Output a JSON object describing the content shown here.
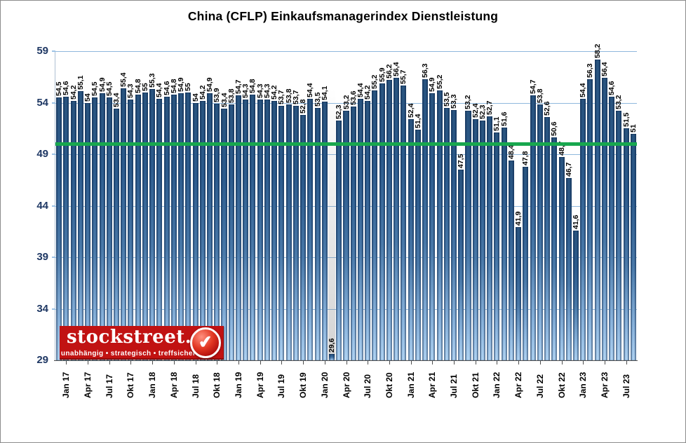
{
  "title": "China (CFLP) Einkaufsmanagerindex Dienstleistung",
  "logo": {
    "name": "stockstreet.de",
    "tagline": "unabhängig • strategisch • treffsicher",
    "badge_glyph": "✔",
    "background_color": "#c11212"
  },
  "colors": {
    "bar_top": "#29547f",
    "bar_bottom": "#aed2f2",
    "threshold_line": "#18a74e",
    "gridline": "#8fb8dd",
    "y_label_color": "#1f3864"
  },
  "chart_data": {
    "type": "bar",
    "title": "China (CFLP) Einkaufsmanagerindex Dienstleistung",
    "ylim": [
      29,
      59
    ],
    "yticks": [
      29,
      34,
      39,
      44,
      49,
      54,
      59
    ],
    "grid": true,
    "threshold_value": 50,
    "decimal_separator": ",",
    "x_tick_labels": [
      "Jan 17",
      "Apr 17",
      "Jul 17",
      "Okt 17",
      "Jan 18",
      "Apr 18",
      "Jul 18",
      "Okt 18",
      "Jan 19",
      "Apr 19",
      "Jul 19",
      "Okt 19",
      "Jan 20",
      "Apr 20",
      "Jul 20",
      "Okt 20",
      "Jan 21",
      "Apr 21",
      "Jul 21",
      "Okt 21",
      "Jan 22",
      "Apr 22",
      "Jul 22",
      "Okt 22",
      "Jan 23",
      "Apr 23",
      "Jul 23"
    ],
    "x_tick_start_index": 1,
    "x_tick_every": 3,
    "values": [
      54.5,
      54.6,
      54.2,
      55.1,
      54,
      54.5,
      54.9,
      54.5,
      53.4,
      55.4,
      54.3,
      54.8,
      55,
      55.3,
      54.4,
      54.6,
      54.8,
      54.9,
      55,
      54,
      54.2,
      54.9,
      53.9,
      53.4,
      53.8,
      54.7,
      54.3,
      54.8,
      54.3,
      54.3,
      54.2,
      53.7,
      53.8,
      53.7,
      52.8,
      54.4,
      53.5,
      54.1,
      29.6,
      52.3,
      53.2,
      53.6,
      54.4,
      54.2,
      55.2,
      55.9,
      56.2,
      56.4,
      55.7,
      52.4,
      51.4,
      56.3,
      54.9,
      55.2,
      53.5,
      53.3,
      47.5,
      53.2,
      52.4,
      52.3,
      52.7,
      51.1,
      51.6,
      48.4,
      41.9,
      47.8,
      54.7,
      53.8,
      52.6,
      50.6,
      48.7,
      46.7,
      41.6,
      54.4,
      56.3,
      58.2,
      56.4,
      54.6,
      53.2,
      51.5,
      51
    ]
  }
}
